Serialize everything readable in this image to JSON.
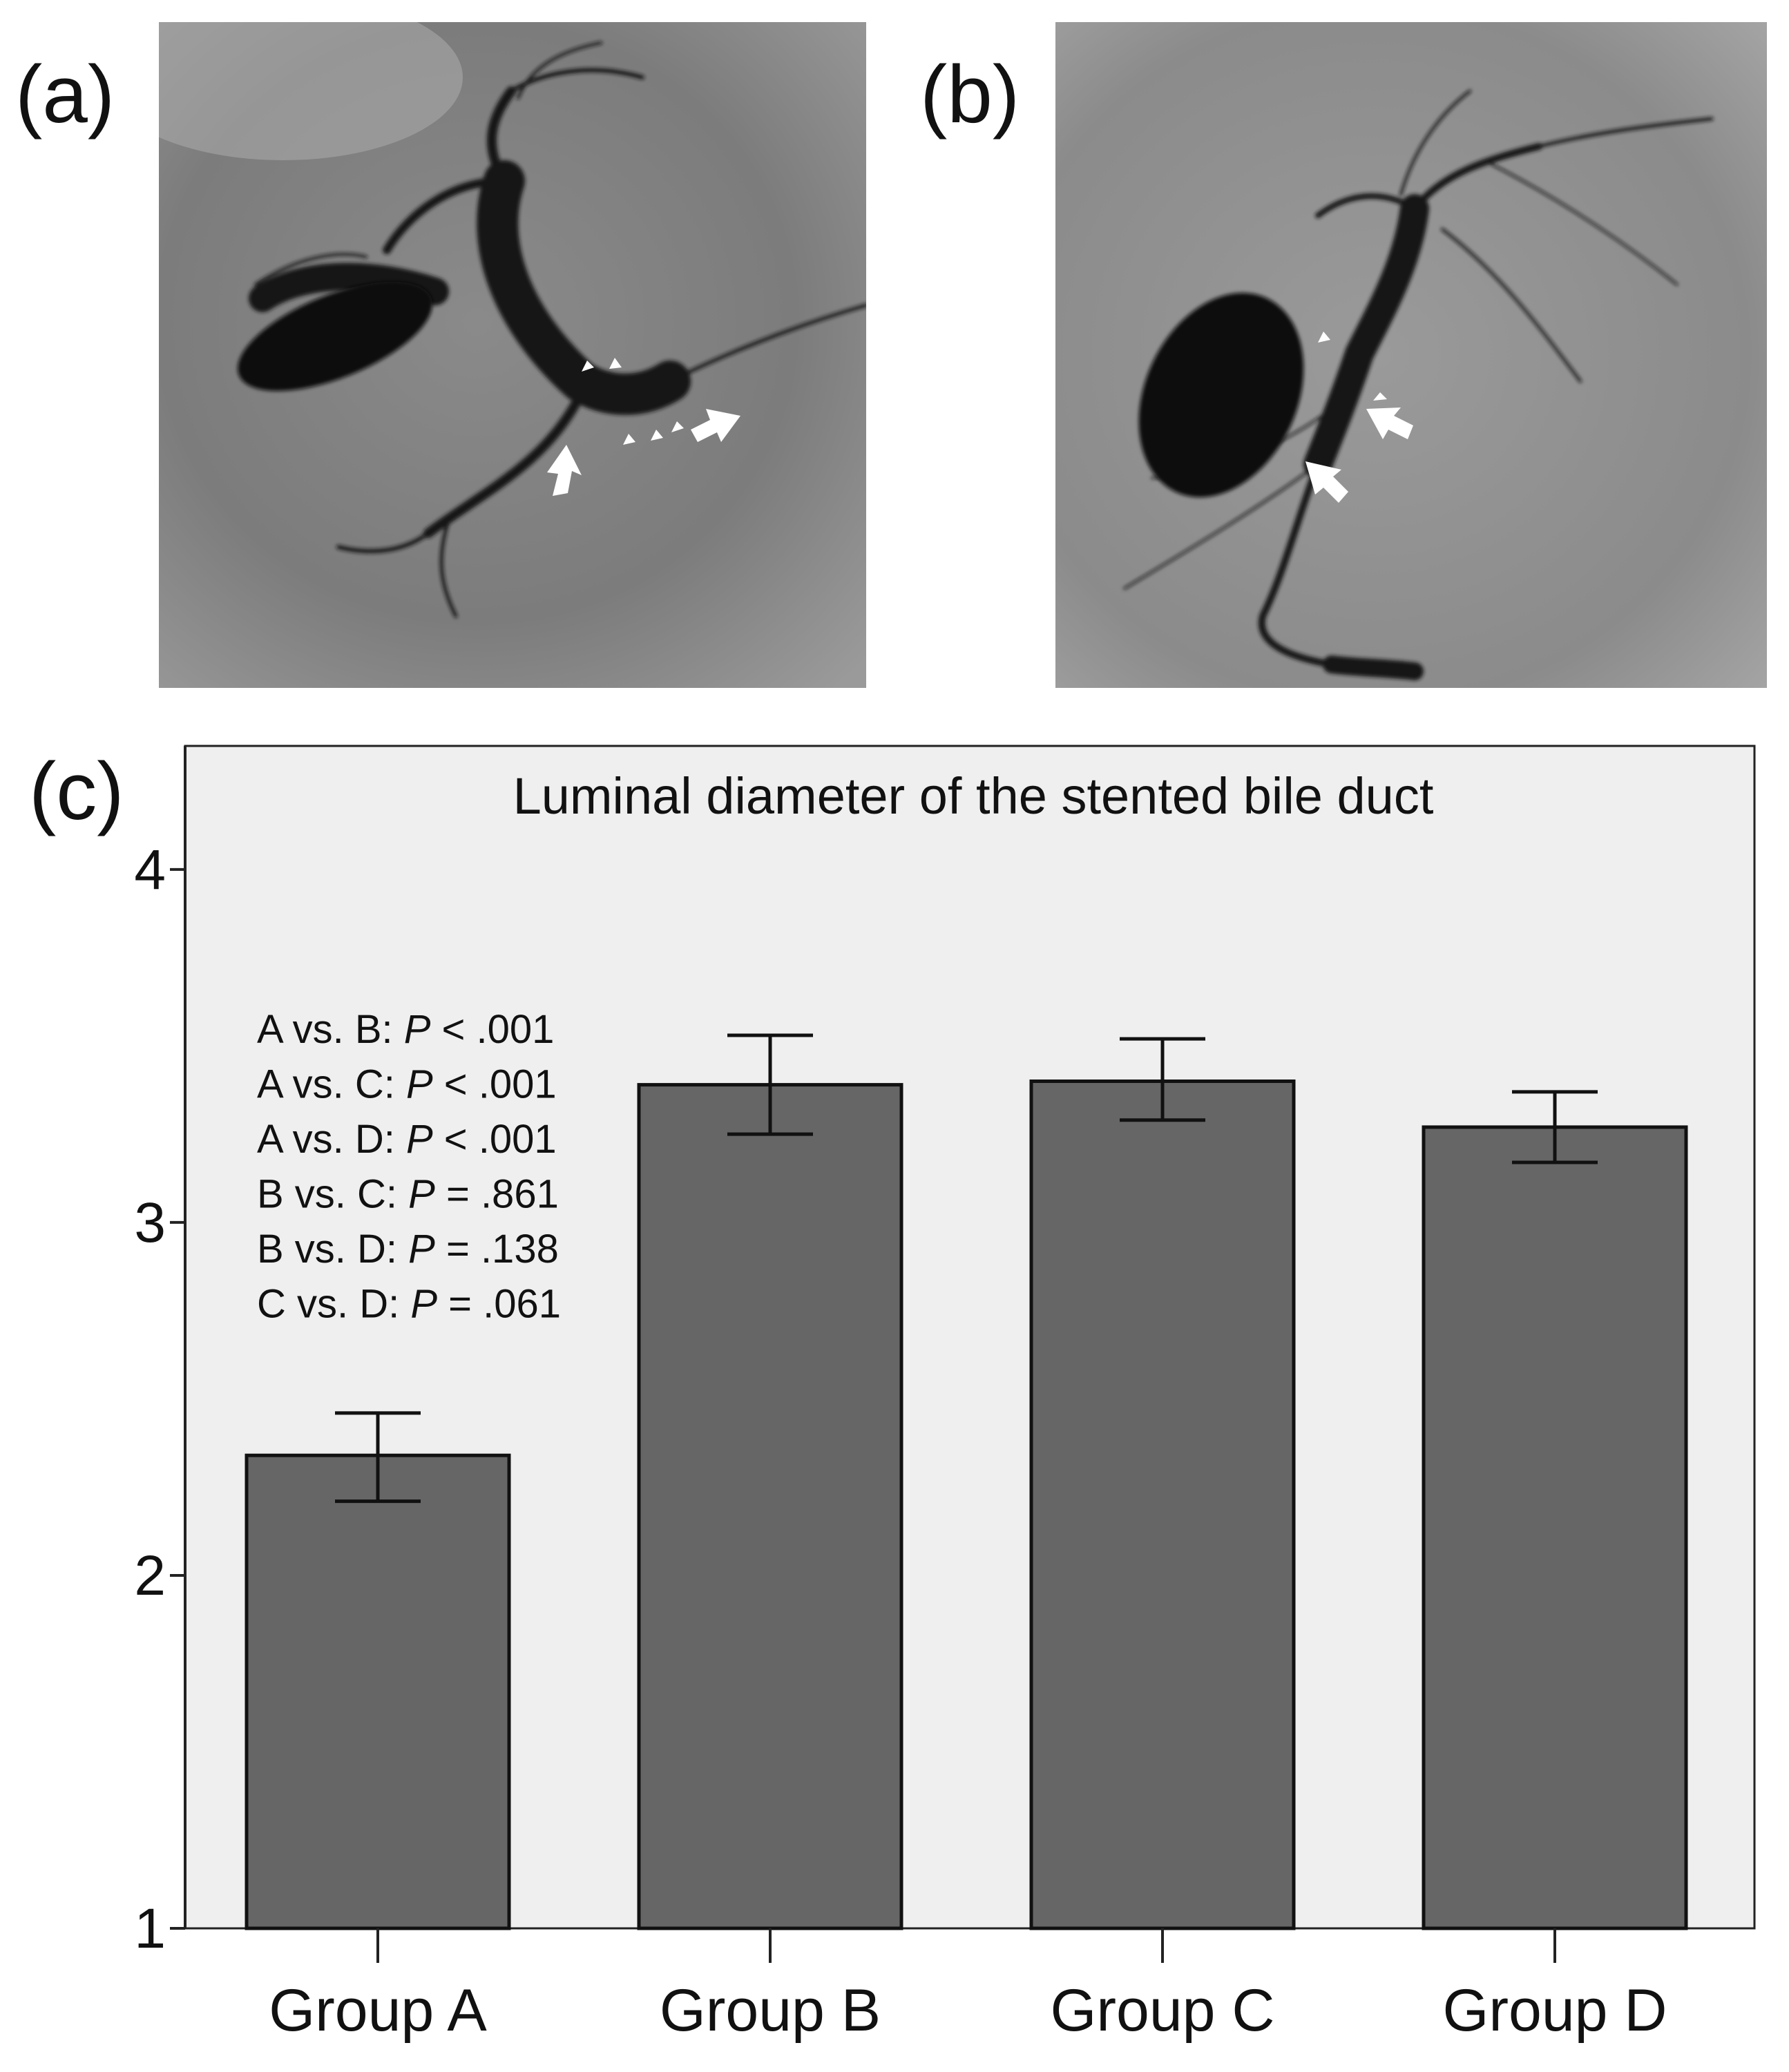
{
  "panels": {
    "a": {
      "label": "(a)"
    },
    "b": {
      "label": "(b)"
    },
    "c": {
      "label": "(c)"
    }
  },
  "chart_data": {
    "type": "bar",
    "title": "Luminal diameter of the stented bile duct",
    "xlabel": "",
    "ylabel": "",
    "ylim": [
      1,
      4.35
    ],
    "yticks": [
      1,
      2,
      3,
      4
    ],
    "categories": [
      "Group A",
      "Group B",
      "Group C",
      "Group D"
    ],
    "values": [
      2.34,
      3.39,
      3.4,
      3.27
    ],
    "error_low": [
      2.21,
      3.25,
      3.29,
      3.17
    ],
    "error_high": [
      2.46,
      3.53,
      3.52,
      3.37
    ],
    "bar_color": "#666666",
    "plot_background": "#efefef",
    "annotations": [
      {
        "prefix": "A vs. B: ",
        "p": "P",
        "suffix": " < .001"
      },
      {
        "prefix": "A vs. C: ",
        "p": "P",
        "suffix": " < .001"
      },
      {
        "prefix": "A vs. D: ",
        "p": "P",
        "suffix": " < .001"
      },
      {
        "prefix": "B vs. C: ",
        "p": "P",
        "suffix": " = .861"
      },
      {
        "prefix": "B vs. D: ",
        "p": "P",
        "suffix": " = .138"
      },
      {
        "prefix": "C vs. D: ",
        "p": "P",
        "suffix": " = .061"
      }
    ],
    "grid": false,
    "legend": "none"
  }
}
